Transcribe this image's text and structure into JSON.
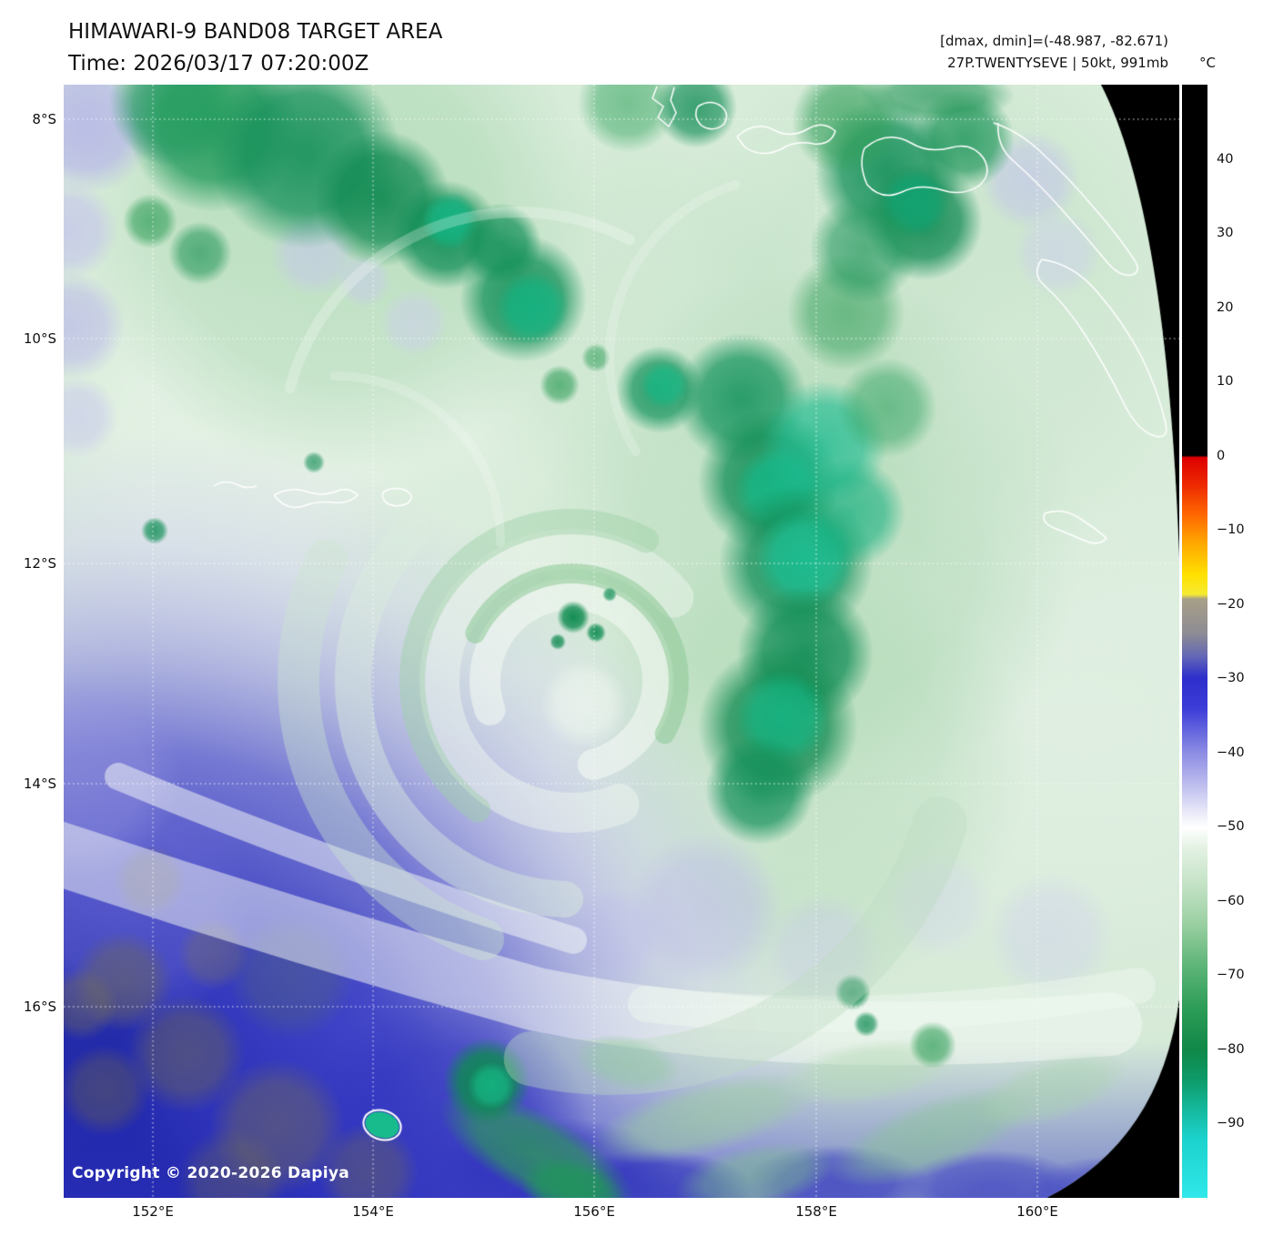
{
  "header": {
    "title": "HIMAWARI-9 BAND08 TARGET AREA",
    "time": "Time: 2026/03/17 07:20:00Z",
    "stats": "[dmax, dmin]=(-48.987, -82.671)",
    "storm": "27P.TWENTYSEVE | 50kt, 991mb"
  },
  "map": {
    "copyright": "Copyright © 2020-2026 Dapiya",
    "lat_ticks": [
      "8°S",
      "10°S",
      "12°S",
      "14°S",
      "16°S"
    ],
    "lon_ticks": [
      "152°E",
      "154°E",
      "156°E",
      "158°E",
      "160°E"
    ]
  },
  "colorbar": {
    "unit": "°C",
    "tmax": 50,
    "tmin": -100,
    "ticks": [
      {
        "value": 40,
        "label": "40"
      },
      {
        "value": 30,
        "label": "30"
      },
      {
        "value": 20,
        "label": "20"
      },
      {
        "value": 10,
        "label": "10"
      },
      {
        "value": 0,
        "label": "0"
      },
      {
        "value": -10,
        "label": "−10"
      },
      {
        "value": -20,
        "label": "−20"
      },
      {
        "value": -30,
        "label": "−30"
      },
      {
        "value": -40,
        "label": "−40"
      },
      {
        "value": -50,
        "label": "−50"
      },
      {
        "value": -60,
        "label": "−60"
      },
      {
        "value": -70,
        "label": "−70"
      },
      {
        "value": -80,
        "label": "−80"
      },
      {
        "value": -90,
        "label": "−90"
      }
    ],
    "gradient_stops": [
      [
        0,
        "#000000"
      ],
      [
        0.333,
        "#000000"
      ],
      [
        0.335,
        "#dd0000"
      ],
      [
        0.36,
        "#ee2a00"
      ],
      [
        0.387,
        "#ff6a00"
      ],
      [
        0.413,
        "#ffaa00"
      ],
      [
        0.44,
        "#ffe000"
      ],
      [
        0.458,
        "#f5ea33"
      ],
      [
        0.462,
        "#a89f88"
      ],
      [
        0.493,
        "#8e8c94"
      ],
      [
        0.513,
        "#6468b4"
      ],
      [
        0.533,
        "#2e2ecc"
      ],
      [
        0.56,
        "#3c3cd8"
      ],
      [
        0.6,
        "#8c8ce4"
      ],
      [
        0.633,
        "#c4c4f0"
      ],
      [
        0.653,
        "#e8e8f8"
      ],
      [
        0.667,
        "#ffffff"
      ],
      [
        0.687,
        "#e2f1e2"
      ],
      [
        0.72,
        "#c2e2c4"
      ],
      [
        0.753,
        "#9cd0a4"
      ],
      [
        0.787,
        "#64b87c"
      ],
      [
        0.827,
        "#2f9e58"
      ],
      [
        0.867,
        "#108848"
      ],
      [
        0.893,
        "#0d9a68"
      ],
      [
        0.92,
        "#14b89c"
      ],
      [
        0.947,
        "#1cd2cd"
      ],
      [
        1,
        "#30e8ea"
      ]
    ]
  }
}
